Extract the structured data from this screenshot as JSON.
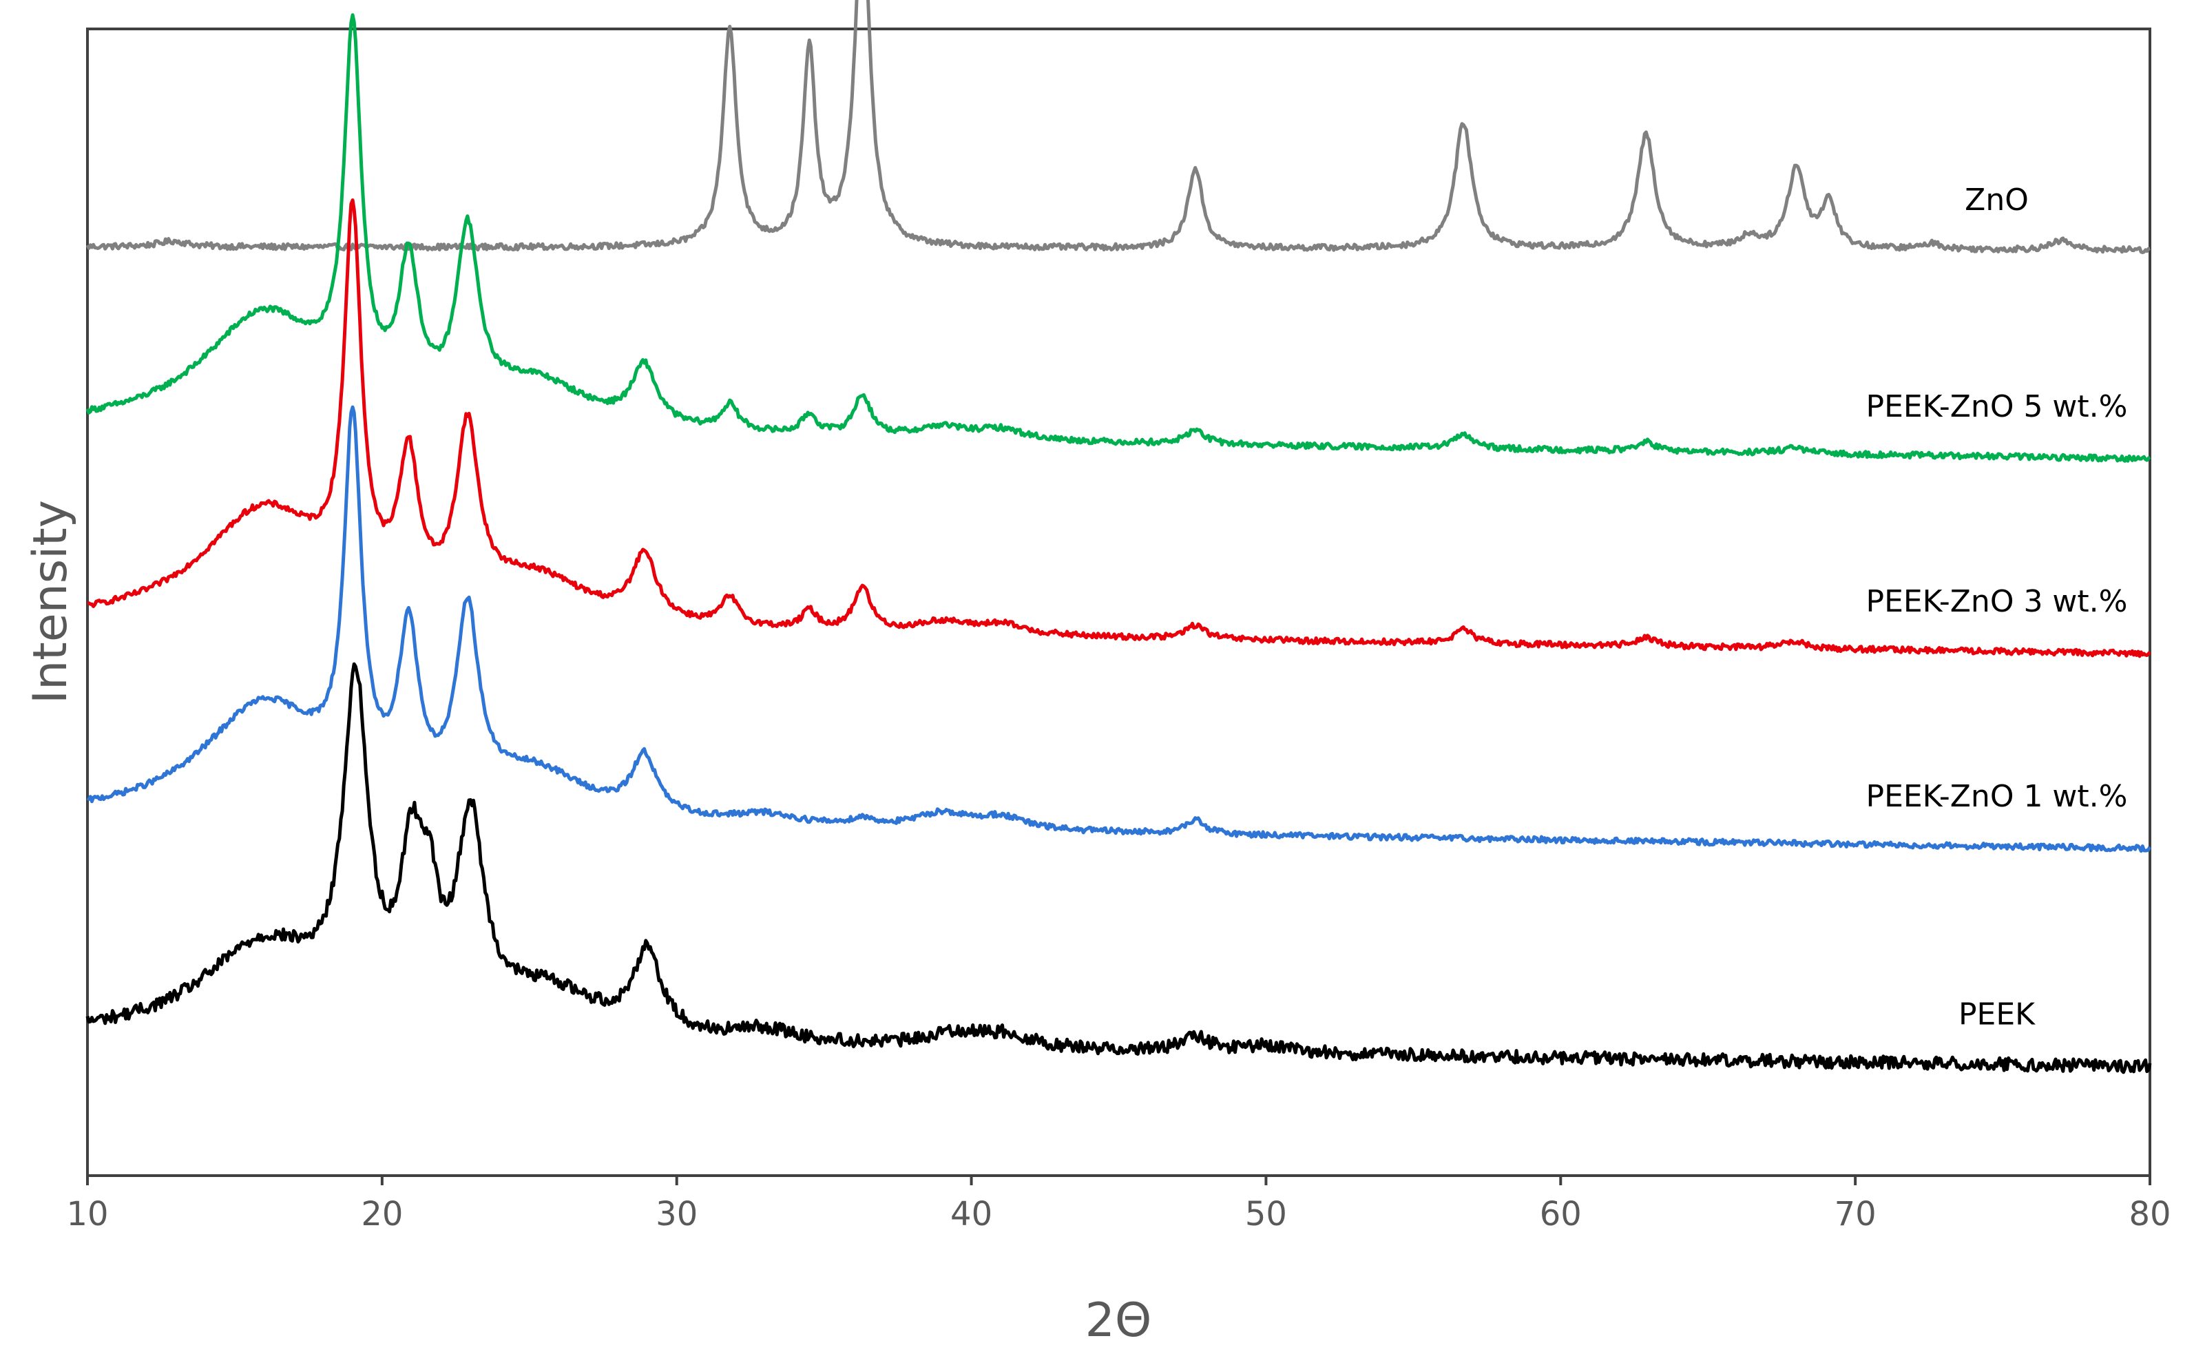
{
  "chart_data": {
    "type": "line",
    "title": "",
    "xlabel": "2Θ",
    "ylabel": "Intensity",
    "xlim": [
      10,
      80
    ],
    "x_ticks": [
      "10",
      "20",
      "30",
      "40",
      "50",
      "60",
      "70",
      "80"
    ],
    "y_ticks_shown": false,
    "grid": false,
    "legend": "labels next to curves",
    "series": [
      {
        "name": "ZnO",
        "color": "#808080",
        "offset": 0.81,
        "baseline_slope": -0.003,
        "noise": 0.0025,
        "peaks": [
          [
            12.9,
            0.005,
            0.6
          ],
          [
            31.8,
            0.19,
            0.28
          ],
          [
            34.5,
            0.17,
            0.25
          ],
          [
            36.3,
            0.3,
            0.3
          ],
          [
            47.6,
            0.07,
            0.3
          ],
          [
            56.7,
            0.11,
            0.35
          ],
          [
            62.9,
            0.1,
            0.35
          ],
          [
            66.4,
            0.01,
            0.4
          ],
          [
            68.0,
            0.07,
            0.35
          ],
          [
            69.1,
            0.04,
            0.3
          ],
          [
            72.6,
            0.005,
            0.4
          ],
          [
            77.0,
            0.008,
            0.4
          ]
        ]
      },
      {
        "name": "PEEK-ZnO 5 wt.%",
        "color": "#00B050",
        "offset": 0.65,
        "baseline_slope": -0.025,
        "noise": 0.0025,
        "peaks": [
          [
            16.0,
            0.1,
            2.6
          ],
          [
            19.0,
            0.31,
            0.35
          ],
          [
            20.9,
            0.12,
            0.4
          ],
          [
            22.9,
            0.15,
            0.45
          ],
          [
            25.2,
            0.04,
            2.2
          ],
          [
            28.9,
            0.05,
            0.5
          ],
          [
            31.8,
            0.022,
            0.35
          ],
          [
            34.5,
            0.017,
            0.3
          ],
          [
            36.3,
            0.035,
            0.35
          ],
          [
            39.0,
            0.01,
            1.0
          ],
          [
            41.0,
            0.009,
            1.0
          ],
          [
            47.6,
            0.012,
            0.4
          ],
          [
            56.7,
            0.012,
            0.4
          ],
          [
            62.9,
            0.008,
            0.4
          ],
          [
            67.9,
            0.005,
            0.5
          ]
        ]
      },
      {
        "name": "PEEK-ZnO 3 wt.%",
        "color": "#E8000B",
        "offset": 0.48,
        "baseline_slope": -0.025,
        "noise": 0.0025,
        "peaks": [
          [
            16.0,
            0.1,
            2.6
          ],
          [
            19.0,
            0.32,
            0.35
          ],
          [
            20.9,
            0.12,
            0.4
          ],
          [
            22.9,
            0.15,
            0.45
          ],
          [
            25.2,
            0.04,
            2.2
          ],
          [
            28.9,
            0.055,
            0.5
          ],
          [
            31.8,
            0.024,
            0.35
          ],
          [
            34.5,
            0.016,
            0.3
          ],
          [
            36.3,
            0.038,
            0.35
          ],
          [
            39.0,
            0.01,
            1.0
          ],
          [
            41.0,
            0.009,
            1.0
          ],
          [
            47.6,
            0.012,
            0.4
          ],
          [
            56.7,
            0.012,
            0.4
          ],
          [
            62.9,
            0.008,
            0.4
          ],
          [
            67.9,
            0.006,
            0.5
          ]
        ]
      },
      {
        "name": "PEEK-ZnO 1 wt.%",
        "color": "#2E75D6",
        "offset": 0.31,
        "baseline_slope": -0.025,
        "noise": 0.0025,
        "peaks": [
          [
            16.0,
            0.1,
            2.6
          ],
          [
            19.0,
            0.31,
            0.35
          ],
          [
            20.9,
            0.14,
            0.4
          ],
          [
            22.9,
            0.16,
            0.45
          ],
          [
            25.2,
            0.04,
            2.2
          ],
          [
            28.9,
            0.05,
            0.5
          ],
          [
            33.0,
            0.008,
            1.2
          ],
          [
            36.3,
            0.006,
            0.5
          ],
          [
            39.0,
            0.013,
            1.0
          ],
          [
            41.0,
            0.011,
            1.0
          ],
          [
            47.6,
            0.012,
            0.4
          ]
        ]
      },
      {
        "name": "PEEK",
        "color": "#000000",
        "offset": 0.12,
        "baseline_slope": -0.025,
        "noise": 0.0055,
        "peaks": [
          [
            16.0,
            0.08,
            2.6
          ],
          [
            19.1,
            0.28,
            0.5
          ],
          [
            21.0,
            0.13,
            0.45
          ],
          [
            21.6,
            0.08,
            0.35
          ],
          [
            23.0,
            0.17,
            0.55
          ],
          [
            25.6,
            0.04,
            2.2
          ],
          [
            29.0,
            0.07,
            0.55
          ],
          [
            33.0,
            0.01,
            1.2
          ],
          [
            39.5,
            0.012,
            1.2
          ],
          [
            41.2,
            0.01,
            1.0
          ],
          [
            47.6,
            0.012,
            0.6
          ],
          [
            50.0,
            0.006,
            1.0
          ]
        ]
      }
    ]
  }
}
